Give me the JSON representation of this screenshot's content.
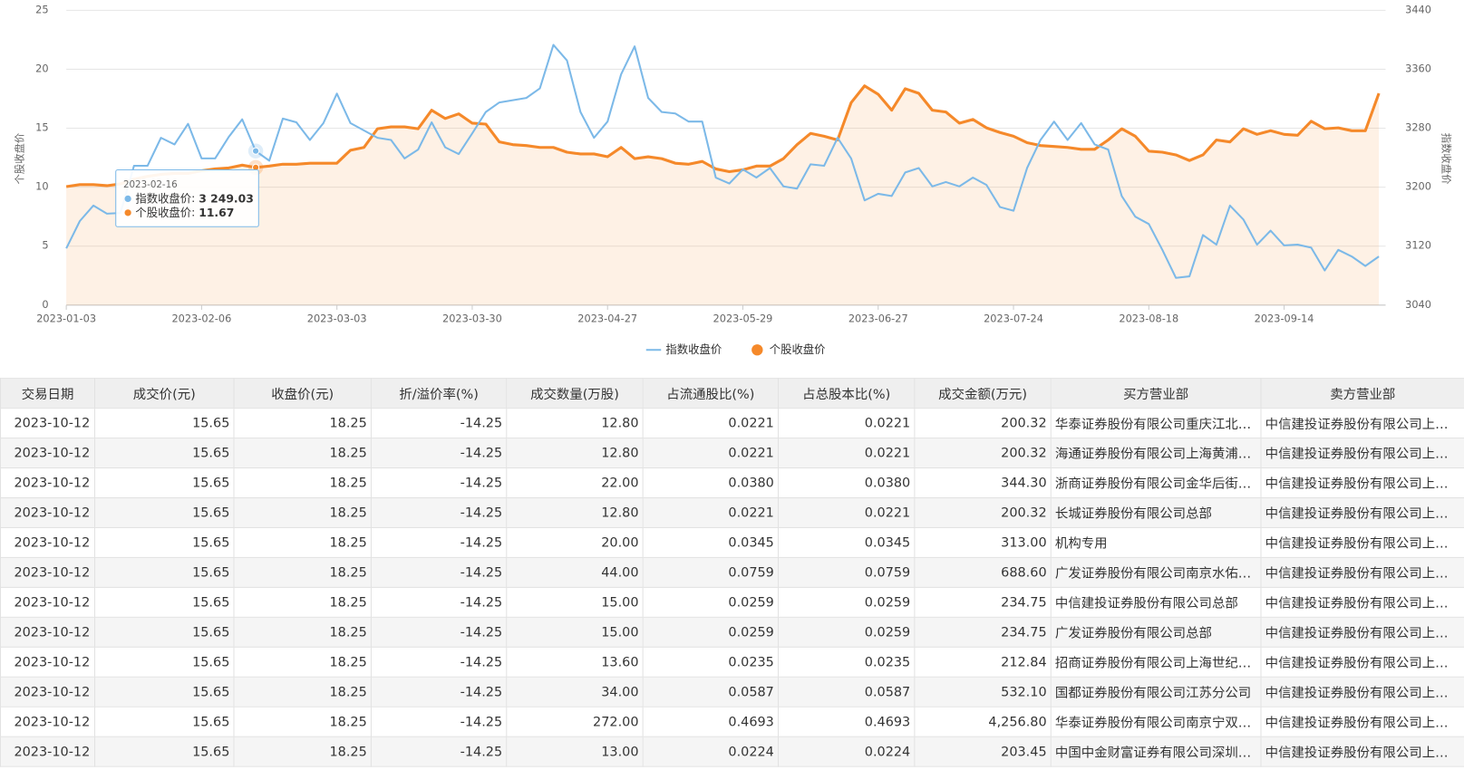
{
  "chart_data": {
    "type": "line",
    "y_label": "个股收盘价",
    "y2_label": "指数收盘价",
    "categories": [
      "2023-01-03",
      null,
      null,
      null,
      null,
      null,
      null,
      null,
      null,
      null,
      "2023-02-06",
      null,
      null,
      null,
      null,
      null,
      null,
      null,
      null,
      null,
      "2023-03-03",
      null,
      null,
      null,
      null,
      null,
      null,
      null,
      null,
      null,
      "2023-03-30",
      null,
      null,
      null,
      null,
      null,
      null,
      null,
      null,
      null,
      "2023-04-27",
      null,
      null,
      null,
      null,
      null,
      null,
      null,
      null,
      null,
      "2023-05-29",
      null,
      null,
      null,
      null,
      null,
      null,
      null,
      null,
      null,
      "2023-06-27",
      null,
      null,
      null,
      null,
      null,
      null,
      null,
      null,
      null,
      "2023-07-24",
      null,
      null,
      null,
      null,
      null,
      null,
      null,
      null,
      null,
      "2023-08-18",
      null,
      null,
      null,
      null,
      null,
      null,
      null,
      null,
      null,
      "2023-09-14",
      null,
      null,
      null,
      null,
      null,
      null,
      null
    ],
    "series": [
      {
        "name": "指数收盘价",
        "color": "#7cb9e8",
        "axis": "y2",
        "area": false,
        "values": [
          3117,
          3154,
          3175,
          3164,
          3165,
          3229,
          3229,
          3267,
          3258,
          3286,
          3239,
          3239,
          3268,
          3292,
          3249.03,
          3236,
          3293,
          3288,
          3264,
          3287,
          3327,
          3287,
          3277,
          3267,
          3264,
          3239,
          3251,
          3288,
          3254,
          3245,
          3273,
          3302,
          3315,
          3318,
          3321,
          3334,
          3393,
          3372,
          3302,
          3267,
          3289,
          3353,
          3391,
          3321,
          3302,
          3300,
          3289,
          3289,
          3213,
          3205,
          3224,
          3213,
          3226,
          3201,
          3198,
          3231,
          3229,
          3267,
          3239,
          3182,
          3191,
          3188,
          3220,
          3226,
          3201,
          3207,
          3201,
          3213,
          3203,
          3173,
          3168,
          3226,
          3264,
          3289,
          3264,
          3287,
          3258,
          3251,
          3188,
          3160,
          3150,
          3115,
          3077,
          3079,
          3135,
          3122,
          3175,
          3156,
          3122,
          3141,
          3121,
          3122,
          3118,
          3087,
          3115,
          3106,
          3093,
          3106
        ]
      },
      {
        "name": "个股收盘价",
        "color": "#f5892a",
        "axis": "y",
        "area": true,
        "values": [
          10.05,
          10.21,
          10.21,
          10.13,
          10.28,
          10.68,
          10.92,
          11.08,
          11.16,
          11.16,
          11.39,
          11.55,
          11.63,
          11.87,
          11.67,
          11.79,
          11.95,
          11.95,
          12.03,
          12.03,
          12.03,
          13.13,
          13.37,
          14.95,
          15.11,
          15.11,
          14.95,
          16.53,
          15.82,
          16.22,
          15.43,
          15.35,
          13.84,
          13.61,
          13.53,
          13.37,
          13.37,
          12.97,
          12.82,
          12.82,
          12.58,
          13.37,
          12.42,
          12.58,
          12.42,
          12.03,
          11.95,
          12.18,
          11.55,
          11.31,
          11.47,
          11.79,
          11.79,
          12.42,
          13.61,
          14.56,
          14.32,
          14,
          17.17,
          18.59,
          17.88,
          16.53,
          18.35,
          17.96,
          16.53,
          16.38,
          15.43,
          15.74,
          15.03,
          14.64,
          14.32,
          13.77,
          13.53,
          13.45,
          13.37,
          13.21,
          13.21,
          14,
          14.95,
          14.32,
          13.05,
          12.97,
          12.74,
          12.26,
          12.74,
          14,
          13.84,
          14.95,
          14.48,
          14.79,
          14.48,
          14.4,
          15.59,
          14.95,
          15.03,
          14.79,
          14.79,
          17.96
        ]
      }
    ],
    "ylim": [
      0,
      25
    ],
    "yticks": [
      0,
      5,
      10,
      15,
      20,
      25
    ],
    "y2lim": [
      3040,
      3440
    ],
    "y2ticks": [
      3040,
      3120,
      3200,
      3280,
      3360,
      3440
    ],
    "grid": true,
    "legend": "bottom",
    "tooltip": {
      "date": "2023-02-16",
      "index": 14,
      "values": [
        "3 249.03",
        "11.67"
      ]
    }
  },
  "table": {
    "header": [
      "交易日期",
      "成交价(元)",
      "收盘价(元)",
      "折/溢价率(%)",
      "成交数量(万股)",
      "占流通股比(%)",
      "占总股本比(%)",
      "成交金额(万元)",
      "买方营业部",
      "卖方营业部"
    ],
    "rows": [
      [
        "2023-10-12",
        "15.65",
        "18.25",
        "-14.25",
        "12.80",
        "0.0221",
        "0.0221",
        "200.32",
        "华泰证券股份有限公司重庆江北…",
        "中信建投证券股份有限公司上…"
      ],
      [
        "2023-10-12",
        "15.65",
        "18.25",
        "-14.25",
        "12.80",
        "0.0221",
        "0.0221",
        "200.32",
        "海通证券股份有限公司上海黄浦…",
        "中信建投证券股份有限公司上…"
      ],
      [
        "2023-10-12",
        "15.65",
        "18.25",
        "-14.25",
        "22.00",
        "0.0380",
        "0.0380",
        "344.30",
        "浙商证券股份有限公司金华后街…",
        "中信建投证券股份有限公司上…"
      ],
      [
        "2023-10-12",
        "15.65",
        "18.25",
        "-14.25",
        "12.80",
        "0.0221",
        "0.0221",
        "200.32",
        "长城证券股份有限公司总部",
        "中信建投证券股份有限公司上…"
      ],
      [
        "2023-10-12",
        "15.65",
        "18.25",
        "-14.25",
        "20.00",
        "0.0345",
        "0.0345",
        "313.00",
        "机构专用",
        "中信建投证券股份有限公司上…"
      ],
      [
        "2023-10-12",
        "15.65",
        "18.25",
        "-14.25",
        "44.00",
        "0.0759",
        "0.0759",
        "688.60",
        "广发证券股份有限公司南京水佑…",
        "中信建投证券股份有限公司上…"
      ],
      [
        "2023-10-12",
        "15.65",
        "18.25",
        "-14.25",
        "15.00",
        "0.0259",
        "0.0259",
        "234.75",
        "中信建投证券股份有限公司总部",
        "中信建投证券股份有限公司上…"
      ],
      [
        "2023-10-12",
        "15.65",
        "18.25",
        "-14.25",
        "15.00",
        "0.0259",
        "0.0259",
        "234.75",
        "广发证券股份有限公司总部",
        "中信建投证券股份有限公司上…"
      ],
      [
        "2023-10-12",
        "15.65",
        "18.25",
        "-14.25",
        "13.60",
        "0.0235",
        "0.0235",
        "212.84",
        "招商证券股份有限公司上海世纪…",
        "中信建投证券股份有限公司上…"
      ],
      [
        "2023-10-12",
        "15.65",
        "18.25",
        "-14.25",
        "34.00",
        "0.0587",
        "0.0587",
        "532.10",
        "国都证券股份有限公司江苏分公司",
        "中信建投证券股份有限公司上…"
      ],
      [
        "2023-10-12",
        "15.65",
        "18.25",
        "-14.25",
        "272.00",
        "0.4693",
        "0.4693",
        "4,256.80",
        "华泰证券股份有限公司南京宁双…",
        "中信建投证券股份有限公司上…"
      ],
      [
        "2023-10-12",
        "15.65",
        "18.25",
        "-14.25",
        "13.00",
        "0.0224",
        "0.0224",
        "203.45",
        "中国中金财富证券有限公司深圳…",
        "中信建投证券股份有限公司上…"
      ]
    ]
  }
}
